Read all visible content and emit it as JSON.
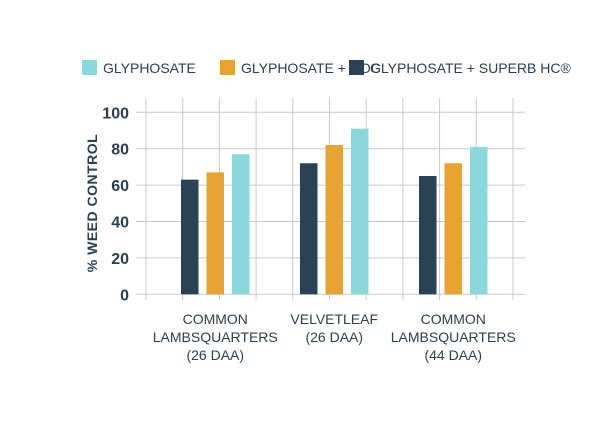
{
  "chart_data": {
    "type": "bar",
    "title": "",
    "xlabel": "",
    "ylabel": "% WEED CONTROL",
    "ylim": [
      0,
      100
    ],
    "yticks": [
      "0",
      "20",
      "40",
      "60",
      "80",
      "100"
    ],
    "grid": true,
    "legend_position": "top",
    "categories": [
      [
        "COMMON",
        "LAMBSQUARTERS",
        "(26 DAA)"
      ],
      [
        "VELVETLEAF",
        "(26 DAA)"
      ],
      [
        "COMMON",
        "LAMBSQUARTERS",
        "(44 DAA)"
      ]
    ],
    "series": [
      {
        "name": "GLYPHOSATE + SUPERB HC®",
        "color": "#2a4255",
        "values": [
          63,
          72,
          65
        ]
      },
      {
        "name": "GLYPHOSATE + COC",
        "color": "#e6a232",
        "values": [
          67,
          82,
          72
        ]
      },
      {
        "name": "GLYPHOSATE",
        "color": "#8ad8dc",
        "values": [
          77,
          91,
          81
        ]
      }
    ],
    "legend_order": [
      2,
      1,
      0
    ]
  }
}
